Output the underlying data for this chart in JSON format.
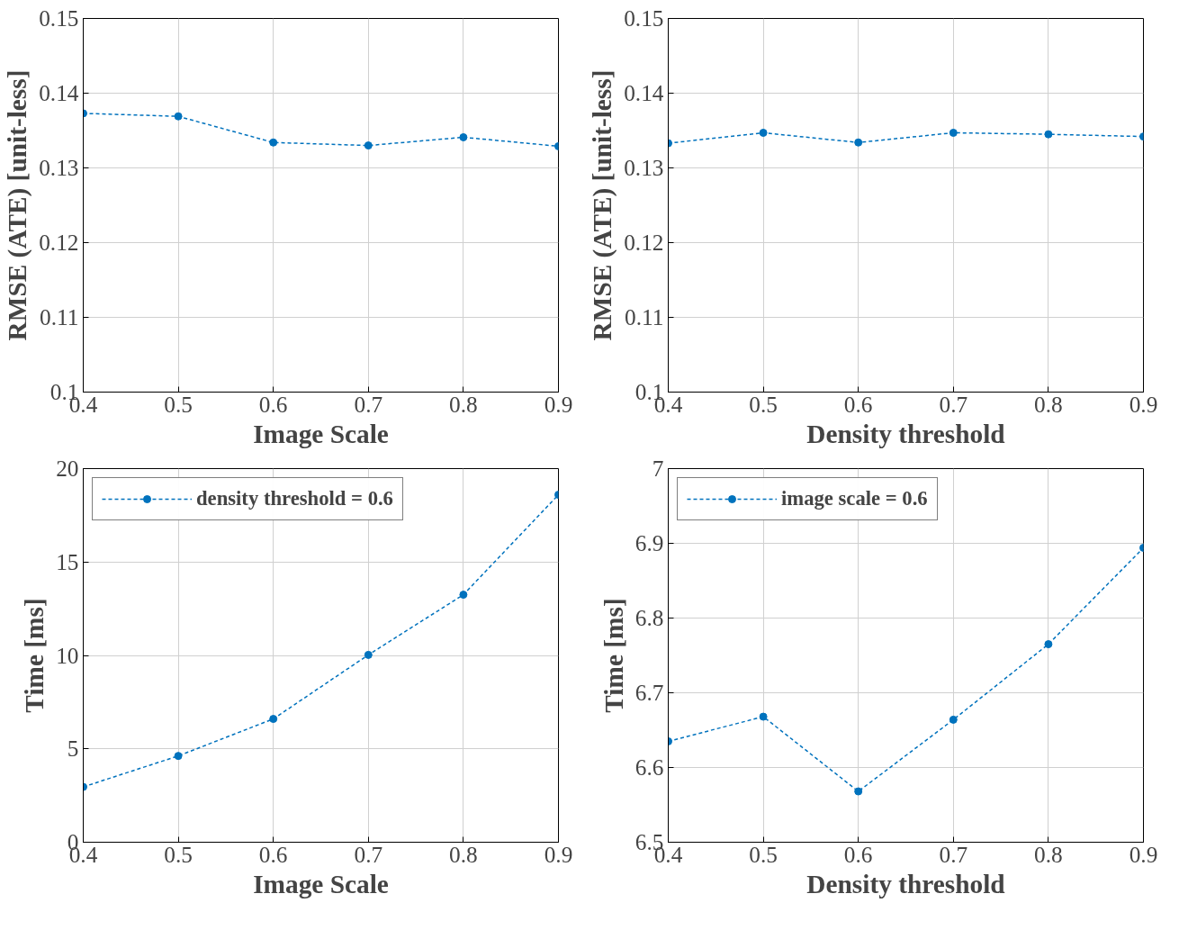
{
  "chart_data": [
    {
      "type": "line",
      "xlabel": "Image Scale",
      "ylabel": "RMSE (ATE) [unit-less]",
      "x": [
        0.4,
        0.5,
        0.6,
        0.7,
        0.8,
        0.9
      ],
      "series": [
        {
          "color": "#0072bd",
          "values": [
            0.1373,
            0.1369,
            0.1334,
            0.133,
            0.1341,
            0.1329
          ]
        }
      ],
      "xlim": [
        0.4,
        0.9
      ],
      "xticks": [
        0.4,
        0.5,
        0.6,
        0.7,
        0.8,
        0.9
      ],
      "ylim": [
        0.1,
        0.15
      ],
      "yticks": [
        0.1,
        0.11,
        0.12,
        0.13,
        0.14,
        0.15
      ],
      "grid": true,
      "marker": "circle",
      "line_style": "dashed"
    },
    {
      "type": "line",
      "xlabel": "Density threshold",
      "ylabel": "RMSE (ATE) [unit-less]",
      "x": [
        0.4,
        0.5,
        0.6,
        0.7,
        0.8,
        0.9
      ],
      "series": [
        {
          "color": "#0072bd",
          "values": [
            0.1333,
            0.1347,
            0.1334,
            0.1347,
            0.1345,
            0.1342
          ]
        }
      ],
      "xlim": [
        0.4,
        0.9
      ],
      "xticks": [
        0.4,
        0.5,
        0.6,
        0.7,
        0.8,
        0.9
      ],
      "ylim": [
        0.1,
        0.15
      ],
      "yticks": [
        0.1,
        0.11,
        0.12,
        0.13,
        0.14,
        0.15
      ],
      "grid": true,
      "marker": "circle",
      "line_style": "dashed"
    },
    {
      "type": "line",
      "xlabel": "Image Scale",
      "ylabel": "Time [ms]",
      "x": [
        0.4,
        0.5,
        0.6,
        0.7,
        0.8,
        0.9
      ],
      "series": [
        {
          "name": "density threshold = 0.6",
          "color": "#0072bd",
          "values": [
            2.96,
            4.62,
            6.6,
            10.03,
            13.25,
            18.6
          ]
        }
      ],
      "xlim": [
        0.4,
        0.9
      ],
      "xticks": [
        0.4,
        0.5,
        0.6,
        0.7,
        0.8,
        0.9
      ],
      "ylim": [
        0,
        20
      ],
      "yticks": [
        0,
        5,
        10,
        15,
        20
      ],
      "grid": true,
      "legend": "top left",
      "marker": "circle",
      "line_style": "dashed"
    },
    {
      "type": "line",
      "xlabel": "Density threshold",
      "ylabel": "Time [ms]",
      "x": [
        0.4,
        0.5,
        0.6,
        0.7,
        0.8,
        0.9
      ],
      "series": [
        {
          "name": "image scale = 0.6",
          "color": "#0072bd",
          "values": [
            6.635,
            6.668,
            6.568,
            6.664,
            6.765,
            6.894
          ]
        }
      ],
      "xlim": [
        0.4,
        0.9
      ],
      "xticks": [
        0.4,
        0.5,
        0.6,
        0.7,
        0.8,
        0.9
      ],
      "ylim": [
        6.5,
        7
      ],
      "yticks": [
        6.5,
        6.6,
        6.7,
        6.8,
        6.9,
        7
      ],
      "grid": true,
      "legend": "top left",
      "marker": "circle",
      "line_style": "dashed"
    }
  ]
}
